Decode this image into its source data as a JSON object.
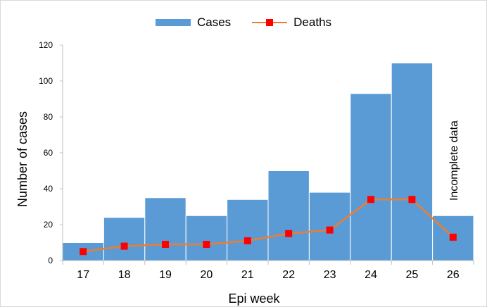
{
  "chart_data": {
    "type": "bar",
    "categories": [
      "17",
      "18",
      "19",
      "20",
      "21",
      "22",
      "23",
      "24",
      "25",
      "26"
    ],
    "series": [
      {
        "name": "Cases",
        "type": "bar",
        "values": [
          10,
          24,
          35,
          25,
          34,
          50,
          38,
          93,
          110,
          25
        ]
      },
      {
        "name": "Deaths",
        "type": "line",
        "values": [
          5,
          8,
          9,
          9,
          11,
          15,
          17,
          34,
          34,
          13
        ]
      }
    ],
    "xlabel": "Epi week",
    "ylabel": "Number of cases",
    "ylim": [
      0,
      120
    ],
    "yticks": [
      "0",
      "20",
      "40",
      "60",
      "80",
      "100",
      "120"
    ],
    "annotation": "Incomplete data",
    "legend_position": "top",
    "colors": {
      "bar": "#5b9bd5",
      "line": "#ed7d31",
      "marker": "#ff0000"
    }
  }
}
